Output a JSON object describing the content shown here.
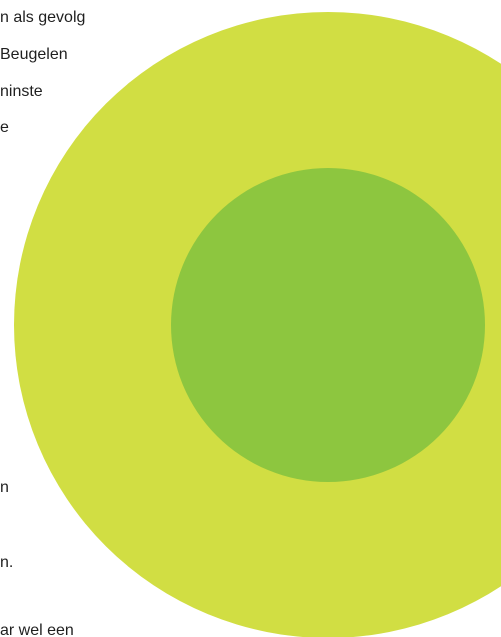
{
  "visible_text": [
    "n als gevolg",
    " Beugelen",
    "ninste",
    "e",
    "n",
    "n.",
    "ar wel een"
  ],
  "colors": {
    "outer_circle": "#D1DE43",
    "inner_circle": "#8DC63F",
    "text": "#1F1F1F"
  }
}
